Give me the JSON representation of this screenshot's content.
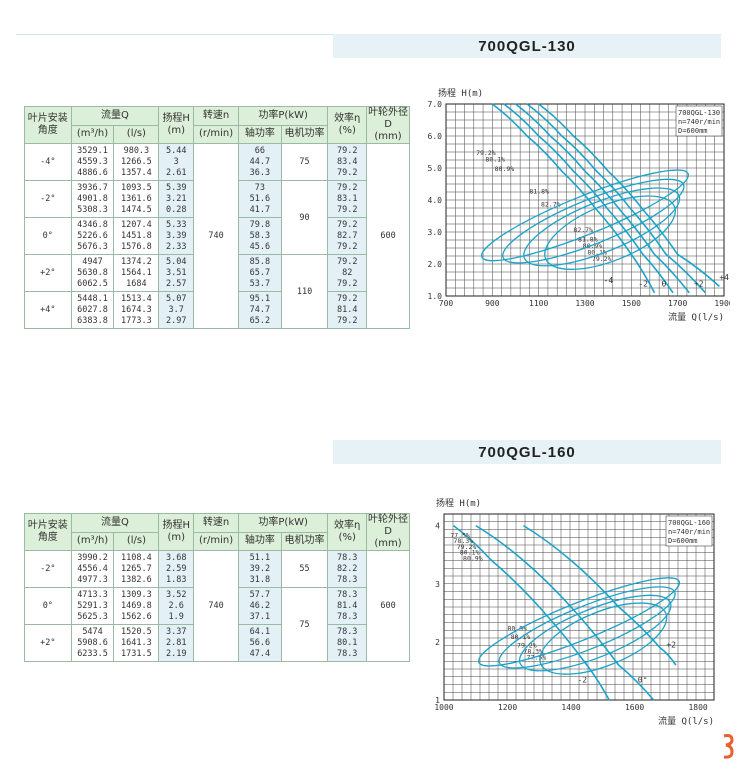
{
  "sections": [
    {
      "title": "700QGL-130",
      "headers": {
        "angle": "叶片安装角度",
        "flow": "流量Q",
        "flow_m3": "(m³/h)",
        "flow_ls": "(l/s)",
        "head": "扬程H",
        "head_unit": "(m)",
        "speed": "转速n",
        "speed_unit": "(r/min)",
        "power": "功率P(kW)",
        "shaft": "轴功率",
        "motor": "电机功率",
        "eff": "效率η",
        "eff_unit": "(%)",
        "impeller": "叶轮外径D",
        "impeller_unit": "(mm)"
      },
      "speed_value": "740",
      "impeller_value": "600",
      "rows": [
        {
          "angle": "-4°",
          "q_m3": [
            "3529.1",
            "4559.3",
            "4886.6"
          ],
          "q_ls": [
            "980.3",
            "1266.5",
            "1357.4"
          ],
          "h": [
            "5.44",
            "3",
            "2.61"
          ],
          "shaft": [
            "66",
            "44.7",
            "36.3"
          ],
          "eff": [
            "79.2",
            "83.4",
            "79.2"
          ]
        },
        {
          "angle": "-2°",
          "q_m3": [
            "3936.7",
            "4901.8",
            "5308.3"
          ],
          "q_ls": [
            "1093.5",
            "1361.6",
            "1474.5"
          ],
          "h": [
            "5.39",
            "3.21",
            "0.28"
          ],
          "shaft": [
            "73",
            "51.6",
            "41.7"
          ],
          "eff": [
            "79.2",
            "83.1",
            "79.2"
          ]
        },
        {
          "angle": "0°",
          "q_m3": [
            "4346.8",
            "5226.6",
            "5676.3"
          ],
          "q_ls": [
            "1207.4",
            "1451.8",
            "1576.8"
          ],
          "h": [
            "5.33",
            "3.39",
            "2.33"
          ],
          "shaft": [
            "79.8",
            "58.3",
            "45.6"
          ],
          "eff": [
            "79.2",
            "82.7",
            "79.2"
          ]
        },
        {
          "angle": "+2°",
          "q_m3": [
            "4947",
            "5630.8",
            "6062.5"
          ],
          "q_ls": [
            "1374.2",
            "1564.1",
            "1684"
          ],
          "h": [
            "5.04",
            "3.51",
            "2.57"
          ],
          "shaft": [
            "85.8",
            "65.7",
            "53.7"
          ],
          "eff": [
            "79.2",
            "82",
            "79.2"
          ]
        },
        {
          "angle": "+4°",
          "q_m3": [
            "5448.1",
            "6027.8",
            "6383.8"
          ],
          "q_ls": [
            "1513.4",
            "1674.3",
            "1773.3"
          ],
          "h": [
            "5.07",
            "3.7",
            "2.97"
          ],
          "shaft": [
            "95.1",
            "74.7",
            "65.2"
          ],
          "eff": [
            "79.2",
            "81.4",
            "79.2"
          ]
        }
      ],
      "motor_groups": [
        {
          "value": "75",
          "rows": 1
        },
        {
          "value": "90",
          "rows": 2
        },
        {
          "value": "110",
          "rows": 2
        }
      ]
    },
    {
      "title": "700QGL-160",
      "headers": {
        "angle": "叶片安装角度",
        "flow": "流量Q",
        "flow_m3": "(m³/h)",
        "flow_ls": "(l/s)",
        "head": "扬程H",
        "head_unit": "(m)",
        "speed": "转速n",
        "speed_unit": "(r/min)",
        "power": "功率P(kW)",
        "shaft": "轴功率",
        "motor": "电机功率",
        "eff": "效率η",
        "eff_unit": "(%)",
        "impeller": "叶轮外径D",
        "impeller_unit": "(mm)"
      },
      "speed_value": "740",
      "impeller_value": "600",
      "rows": [
        {
          "angle": "-2°",
          "q_m3": [
            "3990.2",
            "4556.4",
            "4977.3"
          ],
          "q_ls": [
            "1108.4",
            "1265.7",
            "1382.6"
          ],
          "h": [
            "3.68",
            "2.59",
            "1.83"
          ],
          "shaft": [
            "51.1",
            "39.2",
            "31.8"
          ],
          "eff": [
            "78.3",
            "82.2",
            "78.3"
          ]
        },
        {
          "angle": "0°",
          "q_m3": [
            "4713.3",
            "5291.3",
            "5625.3"
          ],
          "q_ls": [
            "1309.3",
            "1469.8",
            "1562.6"
          ],
          "h": [
            "3.52",
            "2.6",
            "1.9"
          ],
          "shaft": [
            "57.7",
            "46.2",
            "37.1"
          ],
          "eff": [
            "78.3",
            "81.4",
            "78.3"
          ]
        },
        {
          "angle": "+2°",
          "q_m3": [
            "5474",
            "5908.6",
            "6233.5"
          ],
          "q_ls": [
            "1520.5",
            "1641.3",
            "1731.5"
          ],
          "h": [
            "3.37",
            "2.81",
            "2.19"
          ],
          "shaft": [
            "64.1",
            "56.6",
            "47.4"
          ],
          "eff": [
            "78.3",
            "80.1",
            "78.3"
          ]
        }
      ],
      "motor_groups": [
        {
          "value": "55",
          "rows": 1
        },
        {
          "value": "75",
          "rows": 2
        }
      ]
    }
  ],
  "chart_data": [
    {
      "type": "line",
      "ylabel": "扬程 H(m)",
      "xlabel": "流量 Q(l/s)",
      "xlim": [
        700,
        1900
      ],
      "ylim": [
        1.0,
        7.0
      ],
      "x_ticks": [
        "700",
        "900",
        "1100",
        "1300",
        "1500",
        "1700",
        "1900"
      ],
      "y_ticks": [
        "1.0",
        "2.0",
        "3.0",
        "4.0",
        "5.0",
        "6.0",
        "7.0"
      ],
      "legend": [
        "700QGL-130",
        "n=740r/min",
        "D=600mm"
      ],
      "grid": true,
      "angle_labels": [
        {
          "label": "-4",
          "x": 1380,
          "y": 1.4
        },
        {
          "label": "-2",
          "x": 1530,
          "y": 1.3
        },
        {
          "label": "0",
          "x": 1630,
          "y": 1.3
        },
        {
          "label": "+2",
          "x": 1770,
          "y": 1.3
        },
        {
          "label": "+4",
          "x": 1880,
          "y": 1.5
        }
      ],
      "efficiency_labels": [
        {
          "label": "79.2%",
          "x": 830,
          "y": 5.4
        },
        {
          "label": "80.1%",
          "x": 870,
          "y": 5.2
        },
        {
          "label": "80.9%",
          "x": 910,
          "y": 4.9
        },
        {
          "label": "81.8%",
          "x": 1060,
          "y": 4.2
        },
        {
          "label": "82.7%",
          "x": 1110,
          "y": 3.8
        },
        {
          "label": "82.7%",
          "x": 1250,
          "y": 3.0
        },
        {
          "label": "81.8%",
          "x": 1270,
          "y": 2.7
        },
        {
          "label": "80.9%",
          "x": 1290,
          "y": 2.5
        },
        {
          "label": "80.1%",
          "x": 1310,
          "y": 2.3
        },
        {
          "label": "79.2%",
          "x": 1330,
          "y": 2.1
        }
      ],
      "series": [
        {
          "x": [
            900,
            1050,
            1200,
            1350,
            1500,
            1600
          ],
          "y": [
            7.0,
            6.0,
            4.9,
            3.7,
            2.3,
            1.1
          ]
        },
        {
          "x": [
            950,
            1100,
            1250,
            1400,
            1550,
            1680
          ],
          "y": [
            7.0,
            6.0,
            4.9,
            3.7,
            2.3,
            1.1
          ]
        },
        {
          "x": [
            1000,
            1150,
            1300,
            1450,
            1600,
            1750
          ],
          "y": [
            7.0,
            6.0,
            4.9,
            3.7,
            2.3,
            1.1
          ]
        },
        {
          "x": [
            1050,
            1200,
            1350,
            1500,
            1650,
            1820
          ],
          "y": [
            7.0,
            6.0,
            4.9,
            3.7,
            2.3,
            1.1
          ]
        },
        {
          "x": [
            1100,
            1250,
            1400,
            1550,
            1700,
            1880
          ],
          "y": [
            7.0,
            6.0,
            4.9,
            3.7,
            2.3,
            1.3
          ]
        }
      ]
    },
    {
      "type": "line",
      "ylabel": "扬程 H(m)",
      "xlabel": "流量 Q(l/s)",
      "xlim": [
        1000,
        1850
      ],
      "ylim": [
        1,
        4.2
      ],
      "x_ticks": [
        "1000",
        "1200",
        "1400",
        "1600",
        "1800"
      ],
      "y_ticks": [
        "1",
        "2",
        "3",
        "4"
      ],
      "legend": [
        "700QGL-160",
        "n=740r/min",
        "D=600mm"
      ],
      "grid": true,
      "angle_labels": [
        {
          "label": "-2",
          "x": 1420,
          "y": 1.3
        },
        {
          "label": "0°",
          "x": 1610,
          "y": 1.3
        },
        {
          "label": "+2",
          "x": 1700,
          "y": 1.9
        }
      ],
      "efficiency_labels": [
        {
          "label": "77.5%",
          "x": 1020,
          "y": 3.8
        },
        {
          "label": "78.3%",
          "x": 1030,
          "y": 3.7
        },
        {
          "label": "79.2%",
          "x": 1040,
          "y": 3.6
        },
        {
          "label": "80.1%",
          "x": 1050,
          "y": 3.5
        },
        {
          "label": "80.9%",
          "x": 1060,
          "y": 3.4
        },
        {
          "label": "80.9%",
          "x": 1200,
          "y": 2.2
        },
        {
          "label": "80.1%",
          "x": 1210,
          "y": 2.05
        },
        {
          "label": "79.2%",
          "x": 1230,
          "y": 1.9
        },
        {
          "label": "78.3%",
          "x": 1250,
          "y": 1.8
        },
        {
          "label": "77.5%",
          "x": 1260,
          "y": 1.7
        }
      ],
      "series": [
        {
          "x": [
            1030,
            1150,
            1300,
            1450,
            1520
          ],
          "y": [
            4.0,
            3.4,
            2.6,
            1.6,
            1.0
          ]
        },
        {
          "x": [
            1100,
            1250,
            1400,
            1550,
            1660
          ],
          "y": [
            4.0,
            3.4,
            2.6,
            1.6,
            1.0
          ]
        },
        {
          "x": [
            1250,
            1400,
            1550,
            1680,
            1730
          ],
          "y": [
            4.0,
            3.4,
            2.6,
            1.9,
            1.6
          ]
        }
      ]
    }
  ]
}
